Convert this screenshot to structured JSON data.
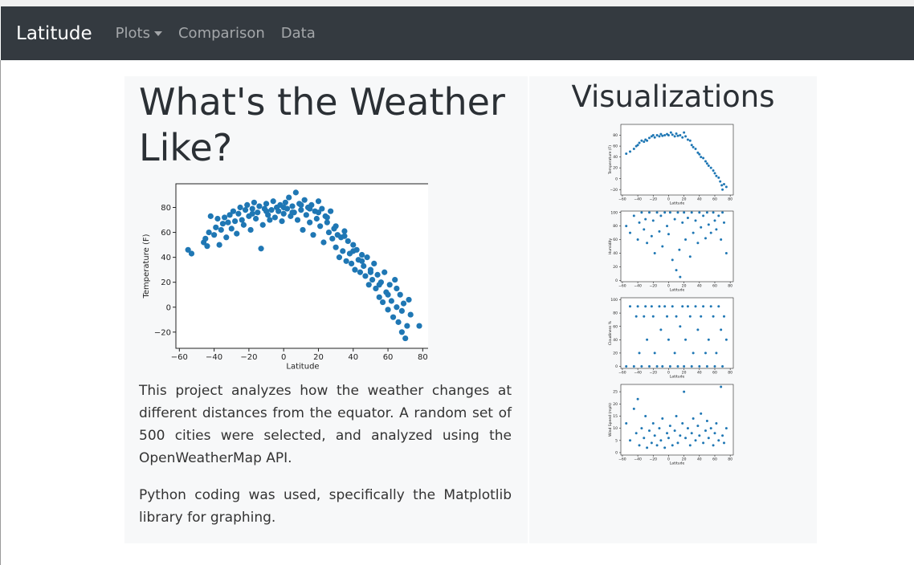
{
  "navbar": {
    "brand": "Latitude",
    "links": [
      {
        "label": "Plots",
        "dropdown": true
      },
      {
        "label": "Comparison",
        "dropdown": false
      },
      {
        "label": "Data",
        "dropdown": false
      }
    ]
  },
  "main": {
    "title": "What's the Weather Like?",
    "paragraphs": [
      "This project analyzes how the weather changes at different distances from the equator. A random set of 500 cities were selected, and analyzed using the OpenWeatherMap API.",
      "Python coding was used, specifically the Matplotlib library for graphing."
    ]
  },
  "sidebar": {
    "title": "Visualizations"
  },
  "colors": {
    "navbar": "#343a40",
    "point": "#1f77b4",
    "panel": "#f7f8f9"
  },
  "chart_data": [
    {
      "type": "scatter",
      "title": "",
      "xlabel": "Latitude",
      "ylabel": "Temperature (F)",
      "xlim": [
        -62,
        84
      ],
      "ylim": [
        -33,
        99
      ],
      "xticks": [
        -60,
        -40,
        -20,
        0,
        20,
        40,
        60,
        80
      ],
      "yticks": [
        -20,
        0,
        20,
        40,
        60,
        80
      ],
      "points": [
        [
          -55,
          46
        ],
        [
          -53,
          43
        ],
        [
          -46,
          52
        ],
        [
          -45,
          55
        ],
        [
          -44,
          49
        ],
        [
          -43,
          60
        ],
        [
          -42,
          73
        ],
        [
          -40,
          58
        ],
        [
          -39,
          64
        ],
        [
          -38,
          71
        ],
        [
          -37,
          50
        ],
        [
          -36,
          62
        ],
        [
          -35,
          67
        ],
        [
          -34,
          72
        ],
        [
          -33,
          56
        ],
        [
          -32,
          68
        ],
        [
          -31,
          74
        ],
        [
          -30,
          63
        ],
        [
          -29,
          77
        ],
        [
          -28,
          69
        ],
        [
          -27,
          59
        ],
        [
          -26,
          75
        ],
        [
          -25,
          80
        ],
        [
          -24,
          70
        ],
        [
          -23,
          66
        ],
        [
          -22,
          78
        ],
        [
          -21,
          82
        ],
        [
          -20,
          73
        ],
        [
          -19,
          62
        ],
        [
          -18,
          79
        ],
        [
          -17,
          84
        ],
        [
          -16,
          71
        ],
        [
          -15,
          76
        ],
        [
          -14,
          81
        ],
        [
          -13,
          47
        ],
        [
          -12,
          66
        ],
        [
          -11,
          79
        ],
        [
          -10,
          83
        ],
        [
          -9,
          74
        ],
        [
          -8,
          70
        ],
        [
          -7,
          78
        ],
        [
          -6,
          85
        ],
        [
          -5,
          72
        ],
        [
          -4,
          80
        ],
        [
          -3,
          77
        ],
        [
          -2,
          82
        ],
        [
          -1,
          69
        ],
        [
          0,
          75
        ],
        [
          1,
          84
        ],
        [
          2,
          79
        ],
        [
          3,
          88
        ],
        [
          4,
          73
        ],
        [
          5,
          81
        ],
        [
          6,
          76
        ],
        [
          7,
          92
        ],
        [
          8,
          70
        ],
        [
          9,
          83
        ],
        [
          10,
          78
        ],
        [
          11,
          62
        ],
        [
          12,
          86
        ],
        [
          13,
          74
        ],
        [
          14,
          80
        ],
        [
          15,
          68
        ],
        [
          16,
          82
        ],
        [
          17,
          58
        ],
        [
          18,
          77
        ],
        [
          19,
          71
        ],
        [
          20,
          85
        ],
        [
          21,
          65
        ],
        [
          22,
          79
        ],
        [
          23,
          52
        ],
        [
          24,
          73
        ],
        [
          25,
          68
        ],
        [
          26,
          60
        ],
        [
          27,
          77
        ],
        [
          28,
          55
        ],
        [
          29,
          63
        ],
        [
          30,
          48
        ],
        [
          31,
          58
        ],
        [
          32,
          40
        ],
        [
          33,
          56
        ],
        [
          34,
          45
        ],
        [
          35,
          61
        ],
        [
          36,
          37
        ],
        [
          37,
          53
        ],
        [
          38,
          43
        ],
        [
          39,
          35
        ],
        [
          40,
          50
        ],
        [
          41,
          30
        ],
        [
          42,
          46
        ],
        [
          43,
          38
        ],
        [
          44,
          28
        ],
        [
          45,
          42
        ],
        [
          46,
          33
        ],
        [
          47,
          25
        ],
        [
          48,
          40
        ],
        [
          49,
          18
        ],
        [
          50,
          30
        ],
        [
          51,
          22
        ],
        [
          52,
          35
        ],
        [
          53,
          15
        ],
        [
          54,
          26
        ],
        [
          55,
          8
        ],
        [
          56,
          20
        ],
        [
          57,
          4
        ],
        [
          58,
          28
        ],
        [
          59,
          12
        ],
        [
          60,
          -2
        ],
        [
          61,
          18
        ],
        [
          62,
          5
        ],
        [
          63,
          -8
        ],
        [
          64,
          22
        ],
        [
          65,
          0
        ],
        [
          66,
          -12
        ],
        [
          67,
          10
        ],
        [
          68,
          -20
        ],
        [
          69,
          3
        ],
        [
          70,
          -25
        ],
        [
          71,
          -15
        ],
        [
          72,
          6
        ],
        [
          73,
          -6
        ],
        [
          78,
          -15
        ],
        [
          -18,
          75
        ],
        [
          -10,
          77
        ],
        [
          0,
          80
        ],
        [
          5,
          76
        ],
        [
          10,
          82
        ],
        [
          15,
          79
        ],
        [
          20,
          76
        ],
        [
          25,
          72
        ],
        [
          30,
          65
        ],
        [
          35,
          57
        ],
        [
          40,
          45
        ],
        [
          45,
          37
        ],
        [
          50,
          28
        ],
        [
          55,
          18
        ],
        [
          60,
          10
        ],
        [
          65,
          15
        ],
        [
          68,
          -3
        ]
      ]
    },
    {
      "type": "scatter",
      "xlabel": "Latitude",
      "ylabel": "Temperature (F)",
      "xlim": [
        -62,
        84
      ],
      "ylim": [
        -30,
        100
      ],
      "xticks": [
        -60,
        -40,
        -20,
        0,
        20,
        40,
        60,
        80
      ],
      "yticks": [
        -20,
        0,
        20,
        40,
        60,
        80
      ],
      "points": [
        [
          -55,
          46
        ],
        [
          -50,
          50
        ],
        [
          -45,
          55
        ],
        [
          -42,
          60
        ],
        [
          -40,
          62
        ],
        [
          -38,
          66
        ],
        [
          -35,
          70
        ],
        [
          -32,
          68
        ],
        [
          -30,
          72
        ],
        [
          -28,
          70
        ],
        [
          -25,
          75
        ],
        [
          -22,
          78
        ],
        [
          -20,
          80
        ],
        [
          -18,
          76
        ],
        [
          -15,
          80
        ],
        [
          -12,
          78
        ],
        [
          -10,
          82
        ],
        [
          -8,
          79
        ],
        [
          -5,
          80
        ],
        [
          -2,
          82
        ],
        [
          0,
          80
        ],
        [
          3,
          85
        ],
        [
          5,
          81
        ],
        [
          8,
          78
        ],
        [
          10,
          83
        ],
        [
          12,
          79
        ],
        [
          15,
          80
        ],
        [
          18,
          76
        ],
        [
          20,
          85
        ],
        [
          22,
          78
        ],
        [
          25,
          72
        ],
        [
          28,
          70
        ],
        [
          30,
          62
        ],
        [
          32,
          58
        ],
        [
          35,
          55
        ],
        [
          38,
          48
        ],
        [
          40,
          45
        ],
        [
          42,
          40
        ],
        [
          45,
          38
        ],
        [
          48,
          32
        ],
        [
          50,
          28
        ],
        [
          52,
          24
        ],
        [
          55,
          20
        ],
        [
          58,
          15
        ],
        [
          60,
          10
        ],
        [
          62,
          5
        ],
        [
          65,
          2
        ],
        [
          67,
          -5
        ],
        [
          69,
          -12
        ],
        [
          70,
          -20
        ],
        [
          72,
          -10
        ],
        [
          75,
          -15
        ]
      ]
    },
    {
      "type": "scatter",
      "xlabel": "Latitude",
      "ylabel": "Humidity",
      "xlim": [
        -62,
        84
      ],
      "ylim": [
        -2,
        102
      ],
      "xticks": [
        -60,
        -40,
        -20,
        0,
        20,
        40,
        60,
        80
      ],
      "yticks": [
        0,
        20,
        40,
        60,
        80,
        100
      ],
      "points": [
        [
          -55,
          80
        ],
        [
          -50,
          70
        ],
        [
          -45,
          95
        ],
        [
          -40,
          60
        ],
        [
          -38,
          85
        ],
        [
          -35,
          100
        ],
        [
          -32,
          75
        ],
        [
          -30,
          90
        ],
        [
          -28,
          55
        ],
        [
          -25,
          100
        ],
        [
          -22,
          65
        ],
        [
          -20,
          88
        ],
        [
          -18,
          40
        ],
        [
          -15,
          100
        ],
        [
          -12,
          72
        ],
        [
          -10,
          95
        ],
        [
          -8,
          50
        ],
        [
          -5,
          100
        ],
        [
          -2,
          80
        ],
        [
          0,
          68
        ],
        [
          2,
          100
        ],
        [
          5,
          30
        ],
        [
          8,
          90
        ],
        [
          10,
          15
        ],
        [
          12,
          100
        ],
        [
          14,
          45
        ],
        [
          15,
          5
        ],
        [
          18,
          85
        ],
        [
          20,
          100
        ],
        [
          22,
          60
        ],
        [
          25,
          92
        ],
        [
          28,
          35
        ],
        [
          30,
          100
        ],
        [
          32,
          70
        ],
        [
          35,
          88
        ],
        [
          38,
          55
        ],
        [
          40,
          100
        ],
        [
          42,
          78
        ],
        [
          45,
          95
        ],
        [
          48,
          62
        ],
        [
          50,
          100
        ],
        [
          52,
          82
        ],
        [
          55,
          70
        ],
        [
          58,
          100
        ],
        [
          60,
          88
        ],
        [
          62,
          75
        ],
        [
          65,
          95
        ],
        [
          68,
          60
        ],
        [
          70,
          100
        ],
        [
          72,
          85
        ],
        [
          75,
          40
        ]
      ]
    },
    {
      "type": "scatter",
      "xlabel": "Latitude",
      "ylabel": "Cloudiness %",
      "xlim": [
        -62,
        84
      ],
      "ylim": [
        -3,
        103
      ],
      "xticks": [
        -60,
        -40,
        -20,
        0,
        20,
        40,
        60,
        80
      ],
      "yticks": [
        0,
        20,
        40,
        60,
        80,
        100
      ],
      "points": [
        [
          -55,
          0
        ],
        [
          -50,
          90
        ],
        [
          -45,
          0
        ],
        [
          -42,
          75
        ],
        [
          -40,
          90
        ],
        [
          -38,
          20
        ],
        [
          -35,
          0
        ],
        [
          -32,
          75
        ],
        [
          -30,
          90
        ],
        [
          -28,
          40
        ],
        [
          -25,
          0
        ],
        [
          -22,
          90
        ],
        [
          -20,
          75
        ],
        [
          -18,
          20
        ],
        [
          -15,
          0
        ],
        [
          -12,
          90
        ],
        [
          -10,
          55
        ],
        [
          -8,
          0
        ],
        [
          -5,
          90
        ],
        [
          -2,
          75
        ],
        [
          0,
          40
        ],
        [
          2,
          0
        ],
        [
          5,
          90
        ],
        [
          8,
          20
        ],
        [
          10,
          75
        ],
        [
          12,
          0
        ],
        [
          15,
          60
        ],
        [
          18,
          90
        ],
        [
          20,
          0
        ],
        [
          22,
          40
        ],
        [
          25,
          90
        ],
        [
          28,
          75
        ],
        [
          30,
          0
        ],
        [
          32,
          20
        ],
        [
          35,
          90
        ],
        [
          38,
          55
        ],
        [
          40,
          0
        ],
        [
          42,
          75
        ],
        [
          45,
          90
        ],
        [
          48,
          20
        ],
        [
          50,
          0
        ],
        [
          52,
          40
        ],
        [
          55,
          90
        ],
        [
          58,
          75
        ],
        [
          60,
          0
        ],
        [
          62,
          20
        ],
        [
          65,
          90
        ],
        [
          68,
          55
        ],
        [
          70,
          0
        ],
        [
          72,
          75
        ],
        [
          75,
          40
        ]
      ]
    },
    {
      "type": "scatter",
      "xlabel": "Latitude",
      "ylabel": "Wind Speed (mph)",
      "xlim": [
        -62,
        84
      ],
      "ylim": [
        -1,
        28
      ],
      "xticks": [
        -60,
        -40,
        -20,
        0,
        20,
        40,
        60,
        80
      ],
      "yticks": [
        0,
        5,
        10,
        15,
        20,
        25
      ],
      "points": [
        [
          -55,
          12
        ],
        [
          -50,
          5
        ],
        [
          -45,
          18
        ],
        [
          -42,
          8
        ],
        [
          -40,
          22
        ],
        [
          -38,
          3
        ],
        [
          -35,
          10
        ],
        [
          -32,
          6
        ],
        [
          -30,
          15
        ],
        [
          -28,
          2
        ],
        [
          -25,
          9
        ],
        [
          -22,
          4
        ],
        [
          -20,
          12
        ],
        [
          -18,
          7
        ],
        [
          -15,
          3
        ],
        [
          -12,
          10
        ],
        [
          -10,
          5
        ],
        [
          -8,
          14
        ],
        [
          -5,
          2
        ],
        [
          -2,
          8
        ],
        [
          0,
          6
        ],
        [
          2,
          11
        ],
        [
          5,
          3
        ],
        [
          8,
          9
        ],
        [
          10,
          15
        ],
        [
          12,
          4
        ],
        [
          15,
          7
        ],
        [
          18,
          12
        ],
        [
          20,
          25
        ],
        [
          22,
          6
        ],
        [
          25,
          10
        ],
        [
          28,
          3
        ],
        [
          30,
          8
        ],
        [
          32,
          14
        ],
        [
          35,
          5
        ],
        [
          38,
          11
        ],
        [
          40,
          7
        ],
        [
          42,
          16
        ],
        [
          45,
          4
        ],
        [
          48,
          9
        ],
        [
          50,
          13
        ],
        [
          52,
          6
        ],
        [
          55,
          10
        ],
        [
          58,
          3
        ],
        [
          60,
          8
        ],
        [
          62,
          12
        ],
        [
          65,
          5
        ],
        [
          68,
          27
        ],
        [
          70,
          7
        ],
        [
          72,
          4
        ],
        [
          75,
          10
        ]
      ]
    }
  ]
}
